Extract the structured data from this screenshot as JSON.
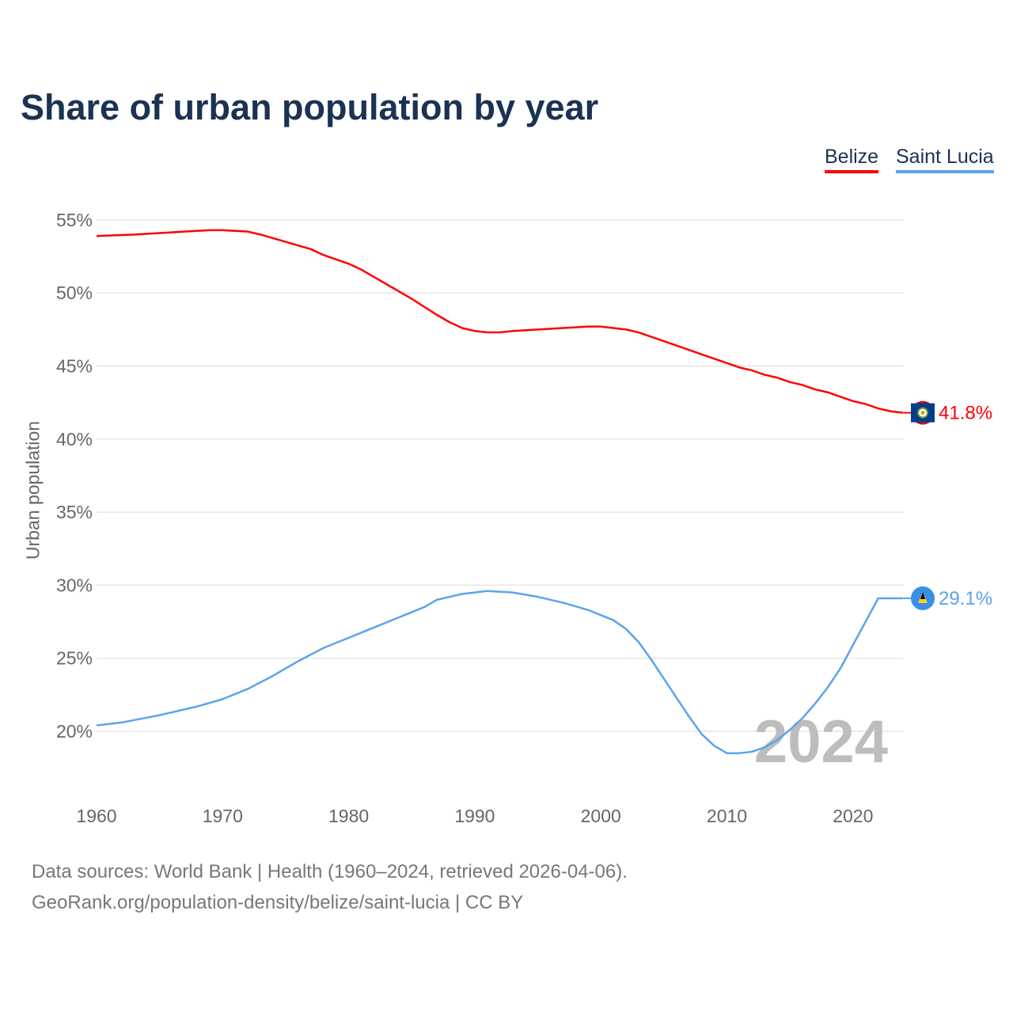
{
  "chart_data": {
    "type": "line",
    "title": "Share of urban population by year",
    "ylabel": "Urban population",
    "xlabel": "",
    "xlim": [
      1960,
      2024
    ],
    "ylim": [
      15.3,
      57
    ],
    "x_ticks": [
      "1960",
      "1970",
      "1980",
      "1990",
      "2000",
      "2010",
      "2020"
    ],
    "y_ticks": [
      "20%",
      "25%",
      "30%",
      "35%",
      "40%",
      "45%",
      "50%",
      "55%"
    ],
    "grid": true,
    "legend_position": "top-right",
    "year_watermark": "2024",
    "series": [
      {
        "name": "Belize",
        "color": "#ff0000",
        "end_label": "41.8%",
        "x": [
          1960,
          1963,
          1965,
          1967,
          1969,
          1970,
          1972,
          1973,
          1975,
          1977,
          1978,
          1980,
          1981,
          1983,
          1985,
          1987,
          1988,
          1989,
          1990,
          1991,
          1992,
          1993,
          1995,
          1997,
          1999,
          2000,
          2002,
          2003,
          2005,
          2007,
          2009,
          2011,
          2012,
          2013,
          2014,
          2015,
          2016,
          2017,
          2018,
          2019,
          2020,
          2021,
          2022,
          2023,
          2024
        ],
        "y": [
          53.9,
          54.0,
          54.1,
          54.2,
          54.3,
          54.3,
          54.2,
          54.0,
          53.5,
          53.0,
          52.6,
          52.0,
          51.6,
          50.6,
          49.6,
          48.5,
          48.0,
          47.6,
          47.4,
          47.3,
          47.3,
          47.4,
          47.5,
          47.6,
          47.7,
          47.7,
          47.5,
          47.3,
          46.7,
          46.1,
          45.5,
          44.9,
          44.7,
          44.4,
          44.2,
          43.9,
          43.7,
          43.4,
          43.2,
          42.9,
          42.6,
          42.4,
          42.1,
          41.9,
          41.8
        ]
      },
      {
        "name": "Saint Lucia",
        "color": "#5ba3ee",
        "end_label": "29.1%",
        "x": [
          1960,
          1962,
          1965,
          1968,
          1970,
          1972,
          1974,
          1976,
          1978,
          1980,
          1982,
          1984,
          1986,
          1987,
          1989,
          1991,
          1993,
          1995,
          1997,
          1999,
          2001,
          2002,
          2003,
          2004,
          2005,
          2006,
          2007,
          2008,
          2009,
          2010,
          2011,
          2012,
          2013,
          2014,
          2015,
          2016,
          2017,
          2018,
          2019,
          2020,
          2021,
          2022,
          2023,
          2024
        ],
        "y": [
          20.4,
          20.6,
          21.1,
          21.7,
          22.2,
          22.9,
          23.8,
          24.8,
          25.7,
          26.4,
          27.1,
          27.8,
          28.5,
          29.0,
          29.4,
          29.6,
          29.5,
          29.2,
          28.8,
          28.3,
          27.6,
          27.0,
          26.1,
          24.9,
          23.6,
          22.3,
          21.0,
          19.8,
          19.0,
          18.5,
          18.5,
          18.6,
          18.9,
          19.4,
          20.1,
          20.9,
          21.9,
          23.0,
          24.3,
          25.9,
          27.5,
          29.1,
          29.1,
          29.1
        ]
      }
    ]
  },
  "footer": {
    "line1": "Data sources: World Bank | Health (1960–2024, retrieved 2026-04-06).",
    "line2": "GeoRank.org/population-density/belize/saint-lucia | CC BY"
  }
}
